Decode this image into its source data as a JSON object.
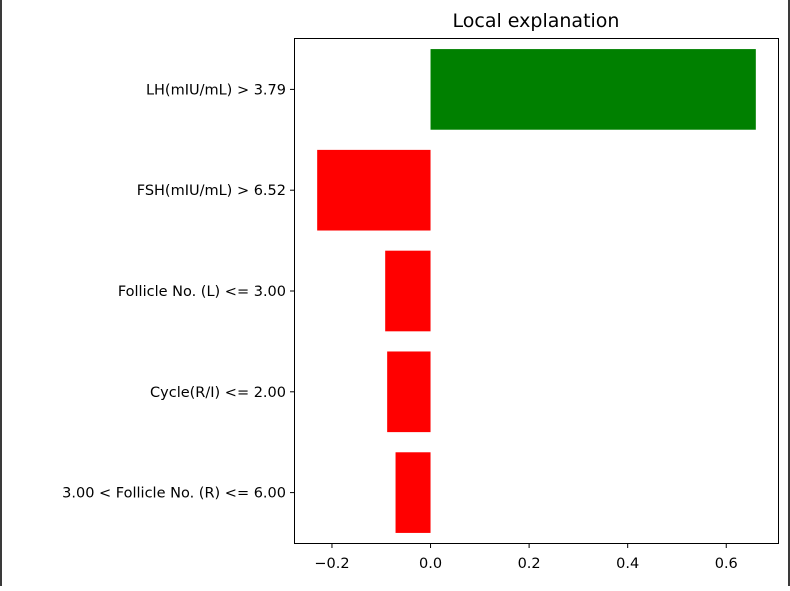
{
  "chart_data": {
    "type": "bar",
    "orientation": "horizontal",
    "title": "Local explanation",
    "xlabel": "",
    "ylabel": "",
    "categories": [
      "LH(mIU/mL) > 3.79",
      "FSH(mIU/mL) > 6.52",
      "Follicle No. (L) <= 3.00",
      "Cycle(R/I) <= 2.00",
      "3.00 < Follicle No. (R) <= 6.00"
    ],
    "values": [
      0.66,
      -0.23,
      -0.092,
      -0.088,
      -0.071
    ],
    "xlim": [
      -0.275,
      0.705
    ],
    "xticks": [
      -0.2,
      0.0,
      0.2,
      0.4,
      0.6
    ],
    "xtick_labels": [
      "−0.2",
      "0.0",
      "0.2",
      "0.4",
      "0.6"
    ],
    "colors": {
      "positive": "#008000",
      "negative": "#ff0000"
    },
    "grid": false,
    "legend": "none"
  }
}
